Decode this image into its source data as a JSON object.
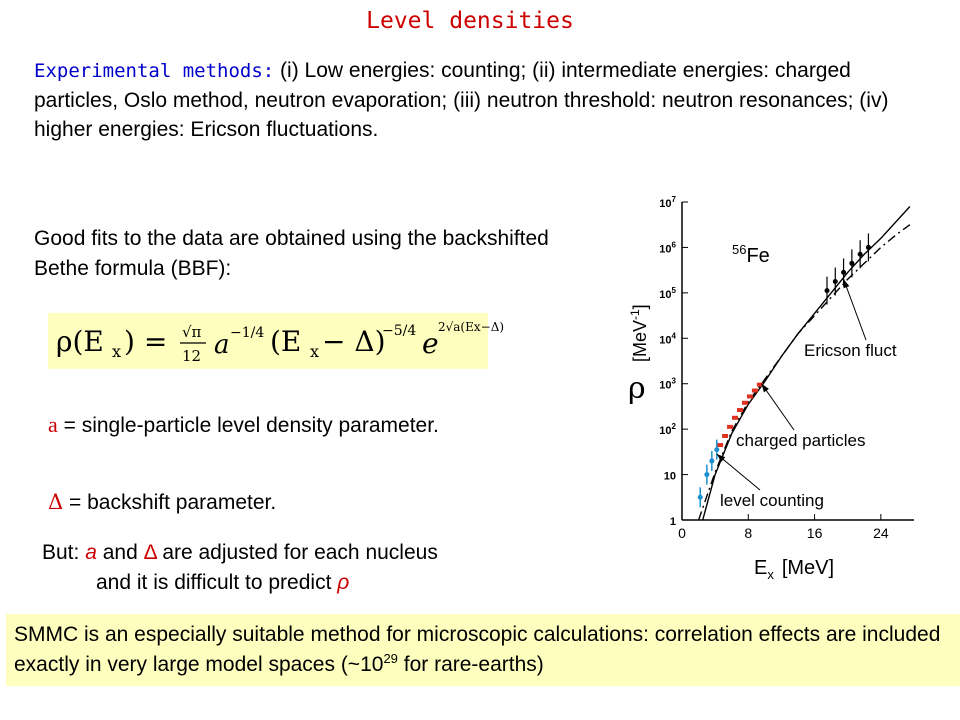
{
  "title": "Level densities",
  "intro": {
    "lead": "Experimental methods:",
    "text": " (i) Low energies: counting; (ii) intermediate energies: charged particles, Oslo method, neutron evaporation; (iii) neutron threshold: neutron resonances; (iv) higher energies: Ericson fluctuations."
  },
  "fits_text": "Good fits to the data are obtained using the backshifted Bethe formula (BBF):",
  "formula": {
    "lhs": "ρ(E",
    "sub_x": "x",
    "eq": ") =",
    "sqrt_pi": "√π",
    "denom": "12",
    "a": "a",
    "exp_a": "−1/4",
    "paren": "(E",
    "minus_delta": " − Δ)",
    "exp_paren": "−5/4",
    "e": "e",
    "exp_e": "2√a(Ex−Δ)"
  },
  "params": {
    "a_symbol": "a",
    "a_text": " = single-particle level density parameter.",
    "delta_symbol": "Δ",
    "delta_text": " = backshift parameter."
  },
  "but": {
    "prefix": "But: ",
    "a": "a",
    "and": " and ",
    "delta": "Δ",
    "rest1": " are adjusted for each nucleus",
    "rest2": "and it is difficult to predict ",
    "rho": "ρ"
  },
  "bottom": {
    "text1": "SMMC is an especially suitable method for microscopic calculations: correlation effects are included exactly in very large model spaces (~10",
    "sup": "29",
    "text2": " for rare-earths)"
  },
  "chart_data": {
    "type": "line",
    "nucleus": "56Fe",
    "xlabel": "E",
    "xlabel_sub": "x",
    "xlabel_unit": "[MeV]",
    "ylabel": "ρ",
    "ylabel_unit": "[MeV",
    "ylabel_exp": "-1",
    "ylabel_close": "]",
    "xlim": [
      0,
      28
    ],
    "ylim_log10": [
      0,
      7
    ],
    "x_ticks": [
      "0",
      "8",
      "16",
      "24"
    ],
    "y_ticks": [
      "1",
      "10",
      "10",
      "10",
      "10",
      "10",
      "10",
      "10"
    ],
    "y_tick_exps": [
      "",
      "",
      "2",
      "3",
      "4",
      "5",
      "6",
      "7"
    ],
    "annotations": [
      "Ericson fluct",
      "charged particles",
      "level counting"
    ],
    "series": [
      {
        "style": "solid",
        "x": [
          2.5,
          4,
          6,
          8,
          10,
          12,
          14,
          16,
          18,
          20,
          22,
          24,
          26,
          27.5
        ],
        "log10_y": [
          0,
          1.0,
          1.9,
          2.55,
          3.05,
          3.6,
          4.1,
          4.55,
          5.0,
          5.45,
          5.85,
          6.2,
          6.6,
          6.9
        ]
      },
      {
        "style": "dashed",
        "x": [
          2,
          4,
          6,
          8,
          10,
          12,
          14,
          16,
          18,
          20,
          22,
          24,
          26,
          27.5
        ],
        "log10_y": [
          0,
          1.05,
          1.95,
          2.6,
          3.1,
          3.6,
          4.1,
          4.5,
          4.9,
          5.3,
          5.65,
          6.0,
          6.3,
          6.5
        ]
      },
      {
        "style": "markers_charged",
        "x": [
          4.6,
          5.2,
          5.8,
          6.4,
          7.0,
          7.6,
          8.2,
          8.8,
          9.4
        ],
        "log10_y": [
          1.65,
          1.85,
          2.05,
          2.25,
          2.42,
          2.58,
          2.72,
          2.85,
          2.98
        ]
      },
      {
        "style": "markers_counting",
        "x": [
          2.2,
          3.0,
          3.6,
          4.2
        ],
        "log10_y": [
          0.5,
          1.0,
          1.3,
          1.55
        ]
      },
      {
        "style": "markers_ericson",
        "x": [
          17.5,
          18.5,
          19.5,
          20.5,
          21.5,
          22.5
        ],
        "log10_y": [
          5.05,
          5.25,
          5.45,
          5.65,
          5.85,
          6.0
        ]
      }
    ]
  }
}
